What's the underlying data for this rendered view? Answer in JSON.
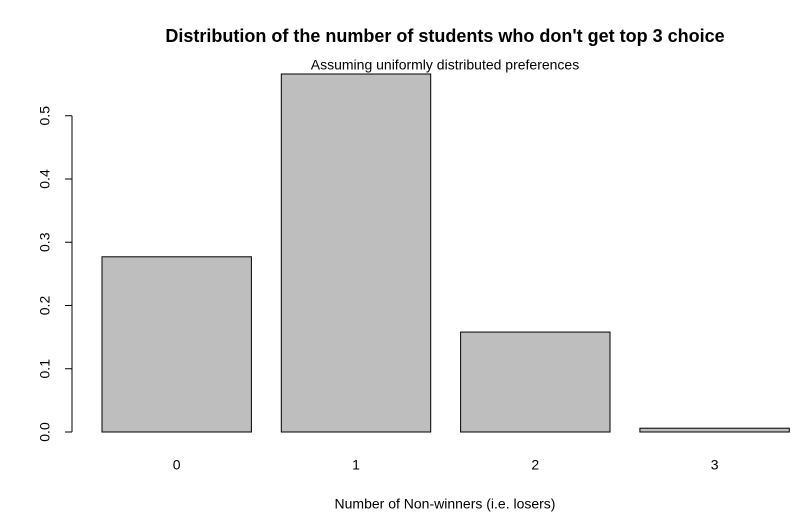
{
  "chart_data": {
    "type": "bar",
    "title": "Distribution of the number of students who don't get top 3 choice",
    "subtitle": "Assuming uniformly distributed preferences",
    "x_label": "Number of Non-winners (i.e. losers)",
    "categories": [
      "0",
      "1",
      "2",
      "3"
    ],
    "values": [
      0.277,
      0.566,
      0.158,
      0.006
    ],
    "color": "#bebebe",
    "ylim": [
      0,
      0.566
    ],
    "yticks": [
      {
        "value": 0,
        "label": "0.0"
      },
      0.1,
      0.2,
      0.3,
      0.4,
      0.5
    ],
    "grid": false
  }
}
